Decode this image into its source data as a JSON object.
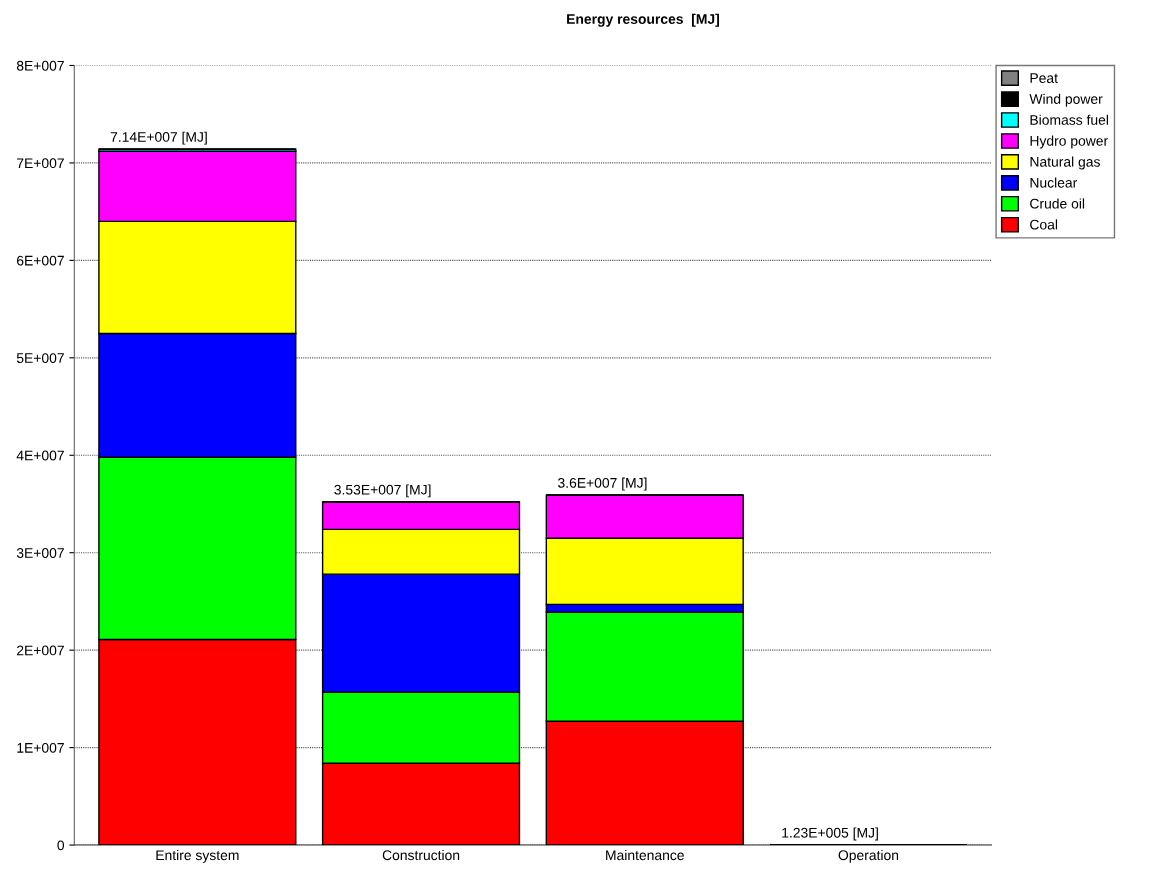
{
  "chart_data": {
    "type": "bar",
    "title": "Energy resources  [MJ]",
    "stacked": true,
    "categories": [
      "Entire system",
      "Construction",
      "Maintenance",
      "Operation"
    ],
    "series": [
      {
        "name": "Coal",
        "color": "#ff0000",
        "values": [
          21100000,
          8400000,
          12700000,
          null
        ]
      },
      {
        "name": "Crude oil",
        "color": "#00ff00",
        "values": [
          18700000,
          7300000,
          11200000,
          0
        ]
      },
      {
        "name": "Nuclear",
        "color": "#0000ff",
        "values": [
          12700000,
          12100000,
          800000,
          0
        ]
      },
      {
        "name": "Natural gas",
        "color": "#ffff00",
        "values": [
          11500000,
          4600000,
          6800000,
          0
        ]
      },
      {
        "name": "Hydro power",
        "color": "#ff00ff",
        "values": [
          7200000,
          2800000,
          4400000,
          0
        ]
      },
      {
        "name": "Biomass fuel",
        "color": "#00ffff",
        "values": [
          200000,
          null,
          null,
          0
        ]
      },
      {
        "name": "Wind power",
        "color": "#000000",
        "values": [
          0,
          0,
          0,
          0
        ]
      },
      {
        "name": "Peat",
        "color": "#808080",
        "values": [
          0,
          0,
          0,
          0
        ]
      }
    ],
    "totals": [
      "7.14E+007 [MJ]",
      "3.53E+007 [MJ]",
      "3.6E+007 [MJ]",
      "1.23E+005 [MJ]"
    ],
    "ylim": [
      0,
      80000000
    ],
    "yticks": [
      0,
      {
        "value": 10000000,
        "label": "1E+007"
      },
      {
        "value": 20000000,
        "label": "2E+007"
      },
      {
        "value": 30000000,
        "label": "3E+007"
      },
      {
        "value": 40000000,
        "label": "4E+007"
      },
      {
        "value": 50000000,
        "label": "5E+007"
      },
      {
        "value": 60000000,
        "label": "6E+007"
      },
      {
        "value": 70000000,
        "label": "7E+007"
      },
      {
        "value": 80000000,
        "label": "8E+007"
      }
    ],
    "grid": "y",
    "legend": "top right"
  }
}
